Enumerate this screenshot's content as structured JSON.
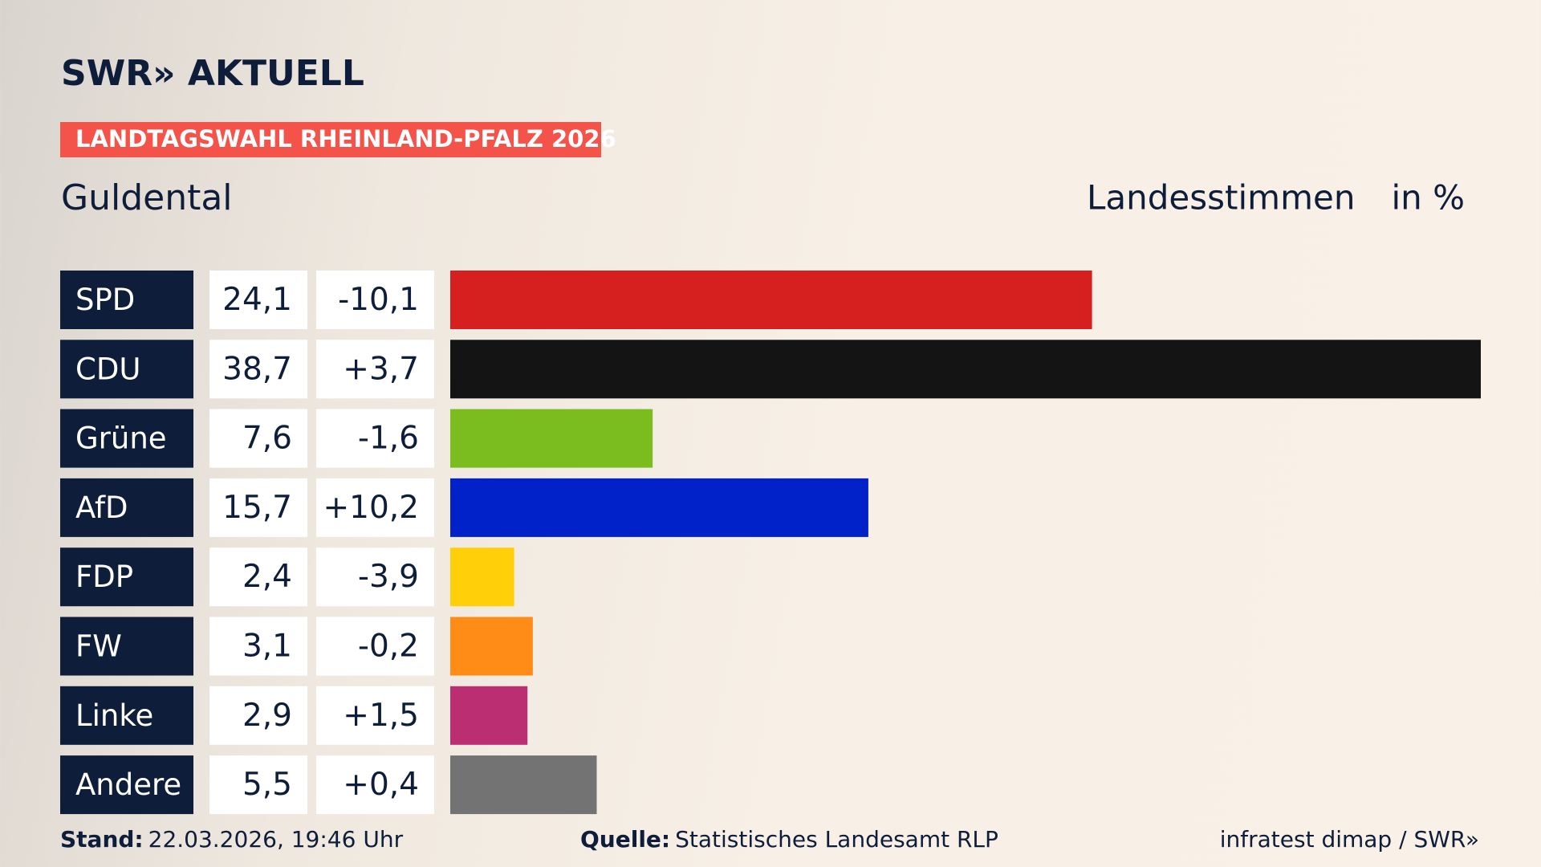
{
  "chart_data": {
    "type": "bar",
    "brand": "SWR» AKTUELL",
    "banner": "LANDTAGSWAHL RHEINLAND-PFALZ 2026",
    "title": "Guldental",
    "value_heading": "Landesstimmen",
    "unit_heading": "in %",
    "categories": [
      "SPD",
      "CDU",
      "Grüne",
      "AfD",
      "FDP",
      "FW",
      "Linke",
      "Andere"
    ],
    "values": [
      24.1,
      38.7,
      7.6,
      15.7,
      2.4,
      3.1,
      2.9,
      5.5
    ],
    "value_labels": [
      "24,1",
      "38,7",
      "7,6",
      "15,7",
      "2,4",
      "3,1",
      "2,9",
      "5,5"
    ],
    "changes": [
      -10.1,
      3.7,
      -1.6,
      10.2,
      -3.9,
      -0.2,
      1.5,
      0.4
    ],
    "change_labels": [
      "-10,1",
      "+3,7",
      "-1,6",
      "+10,2",
      "-3,9",
      "-0,2",
      "+1,5",
      "+0,4"
    ],
    "colors": [
      "#d61f1f",
      "#141414",
      "#7bbd1f",
      "#0022c8",
      "#ffcf0a",
      "#ff8c17",
      "#bb2e72",
      "#737373"
    ],
    "footer": {
      "date_label": "Stand:",
      "date": "22.03.2026, 19:46 Uhr",
      "source_label": "Quelle:",
      "source": "Statistisches Landesamt RLP",
      "credit": "infratest dimap / SWR»"
    }
  }
}
